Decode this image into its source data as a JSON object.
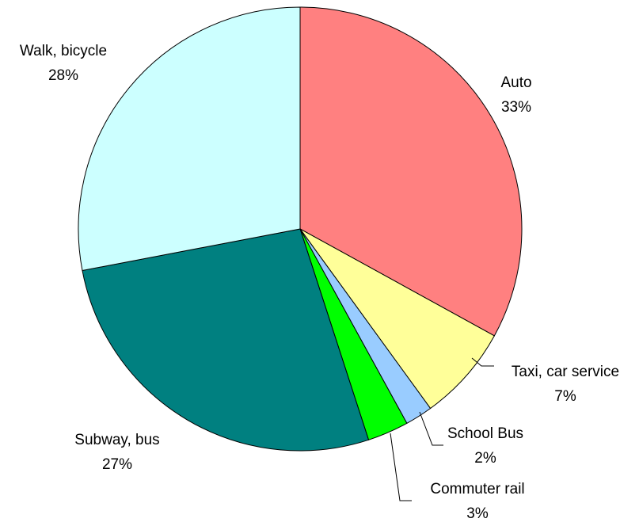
{
  "chart_data": {
    "type": "pie",
    "categories": [
      "Auto",
      "Taxi, car service",
      "School Bus",
      "Commuter rail",
      "Subway, bus",
      "Walk, bicycle"
    ],
    "values": [
      33,
      7,
      2,
      3,
      27,
      28
    ],
    "value_labels": [
      "33%",
      "7%",
      "2%",
      "3%",
      "27%",
      "28%"
    ],
    "colors": [
      "#ff8080",
      "#ffff99",
      "#99ccff",
      "#00ff00",
      "#008080",
      "#ccffff"
    ]
  }
}
